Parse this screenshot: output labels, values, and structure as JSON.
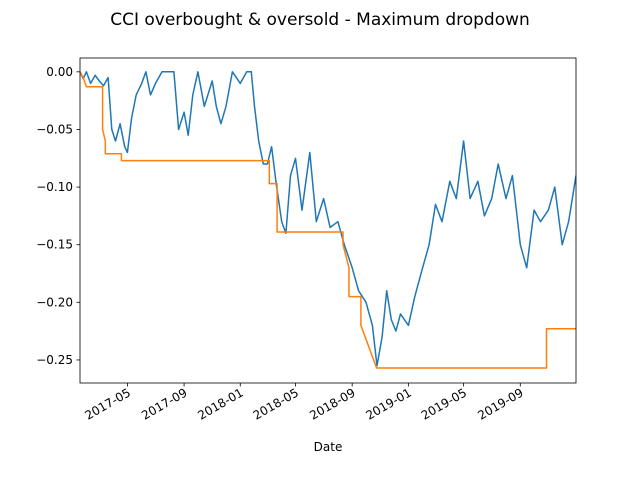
{
  "chart_data": {
    "type": "line",
    "title": "CCI overbought & oversold - Maximum dropdown",
    "xlabel": "Date",
    "ylabel": "",
    "xlim": [
      "2017-01-18",
      "2019-12-31"
    ],
    "ylim": [
      -0.27,
      0.012
    ],
    "grid": false,
    "x_ticks": [
      {
        "value": "2017-05-01",
        "label": "2017-05"
      },
      {
        "value": "2017-09-01",
        "label": "2017-09"
      },
      {
        "value": "2018-01-01",
        "label": "2018-01"
      },
      {
        "value": "2018-05-01",
        "label": "2018-05"
      },
      {
        "value": "2018-09-01",
        "label": "2018-09"
      },
      {
        "value": "2019-01-01",
        "label": "2019-01"
      },
      {
        "value": "2019-05-01",
        "label": "2019-05"
      },
      {
        "value": "2019-09-01",
        "label": "2019-09"
      }
    ],
    "y_ticks": [
      {
        "value": 0.0,
        "label": "0.00"
      },
      {
        "value": -0.05,
        "label": "−0.05"
      },
      {
        "value": -0.1,
        "label": "−0.10"
      },
      {
        "value": -0.15,
        "label": "−0.15"
      },
      {
        "value": -0.2,
        "label": "−0.20"
      },
      {
        "value": -0.25,
        "label": "−0.25"
      }
    ],
    "series": [
      {
        "color": "#1f77b4",
        "x": [
          "2017-01-18",
          "2017-01-25",
          "2017-02-01",
          "2017-02-10",
          "2017-02-20",
          "2017-03-01",
          "2017-03-10",
          "2017-03-20",
          "2017-03-28",
          "2017-04-05",
          "2017-04-15",
          "2017-04-25",
          "2017-05-01",
          "2017-05-10",
          "2017-05-20",
          "2017-06-01",
          "2017-06-10",
          "2017-06-20",
          "2017-07-01",
          "2017-07-15",
          "2017-08-01",
          "2017-08-10",
          "2017-08-20",
          "2017-09-01",
          "2017-09-10",
          "2017-09-20",
          "2017-10-01",
          "2017-10-15",
          "2017-11-01",
          "2017-11-10",
          "2017-11-20",
          "2017-12-01",
          "2017-12-15",
          "2018-01-01",
          "2018-01-15",
          "2018-01-25",
          "2018-02-01",
          "2018-02-10",
          "2018-02-20",
          "2018-03-01",
          "2018-03-10",
          "2018-03-20",
          "2018-04-01",
          "2018-04-10",
          "2018-04-20",
          "2018-05-01",
          "2018-05-15",
          "2018-06-01",
          "2018-06-15",
          "2018-07-01",
          "2018-07-15",
          "2018-08-01",
          "2018-08-15",
          "2018-09-01",
          "2018-09-15",
          "2018-10-01",
          "2018-10-15",
          "2018-10-25",
          "2018-11-05",
          "2018-11-15",
          "2018-11-25",
          "2018-12-05",
          "2018-12-15",
          "2019-01-01",
          "2019-01-15",
          "2019-02-01",
          "2019-02-15",
          "2019-03-01",
          "2019-03-15",
          "2019-04-01",
          "2019-04-15",
          "2019-05-01",
          "2019-05-15",
          "2019-06-01",
          "2019-06-15",
          "2019-07-01",
          "2019-07-15",
          "2019-08-01",
          "2019-08-15",
          "2019-09-01",
          "2019-09-15",
          "2019-10-01",
          "2019-10-15",
          "2019-11-01",
          "2019-11-15",
          "2019-12-01",
          "2019-12-15",
          "2019-12-31"
        ],
        "y": [
          0.0,
          -0.006,
          0.0,
          -0.01,
          -0.003,
          -0.008,
          -0.012,
          -0.005,
          -0.05,
          -0.06,
          -0.045,
          -0.065,
          -0.07,
          -0.04,
          -0.02,
          -0.01,
          0.0,
          -0.02,
          -0.01,
          0.0,
          0.0,
          0.0,
          -0.05,
          -0.035,
          -0.055,
          -0.02,
          0.0,
          -0.03,
          -0.008,
          -0.03,
          -0.045,
          -0.03,
          0.0,
          -0.01,
          0.0,
          0.0,
          -0.03,
          -0.06,
          -0.08,
          -0.08,
          -0.065,
          -0.097,
          -0.13,
          -0.14,
          -0.09,
          -0.075,
          -0.12,
          -0.07,
          -0.13,
          -0.11,
          -0.135,
          -0.13,
          -0.15,
          -0.17,
          -0.19,
          -0.2,
          -0.22,
          -0.255,
          -0.23,
          -0.19,
          -0.215,
          -0.225,
          -0.21,
          -0.22,
          -0.195,
          -0.17,
          -0.15,
          -0.115,
          -0.13,
          -0.095,
          -0.11,
          -0.06,
          -0.11,
          -0.095,
          -0.125,
          -0.11,
          -0.08,
          -0.11,
          -0.09,
          -0.15,
          -0.17,
          -0.12,
          -0.13,
          -0.12,
          -0.1,
          -0.15,
          -0.13,
          -0.09
        ]
      },
      {
        "color": "#ff7f0e",
        "x": [
          "2017-01-18",
          "2017-01-25",
          "2017-02-01",
          "2017-03-08",
          "2017-03-08",
          "2017-03-14",
          "2017-03-14",
          "2017-04-18",
          "2017-04-18",
          "2018-03-05",
          "2018-03-05",
          "2018-03-22",
          "2018-03-22",
          "2018-04-05",
          "2018-04-05",
          "2018-08-12",
          "2018-08-12",
          "2018-08-25",
          "2018-08-25",
          "2018-09-20",
          "2018-09-20",
          "2018-10-24",
          "2018-10-24",
          "2019-10-28",
          "2019-10-28",
          "2019-12-31"
        ],
        "y": [
          0.0,
          -0.005,
          -0.013,
          -0.013,
          -0.05,
          -0.06,
          -0.071,
          -0.071,
          -0.077,
          -0.077,
          -0.097,
          -0.097,
          -0.139,
          -0.139,
          -0.139,
          -0.139,
          -0.15,
          -0.17,
          -0.195,
          -0.195,
          -0.22,
          -0.257,
          -0.257,
          -0.257,
          -0.223,
          -0.223
        ]
      }
    ]
  }
}
